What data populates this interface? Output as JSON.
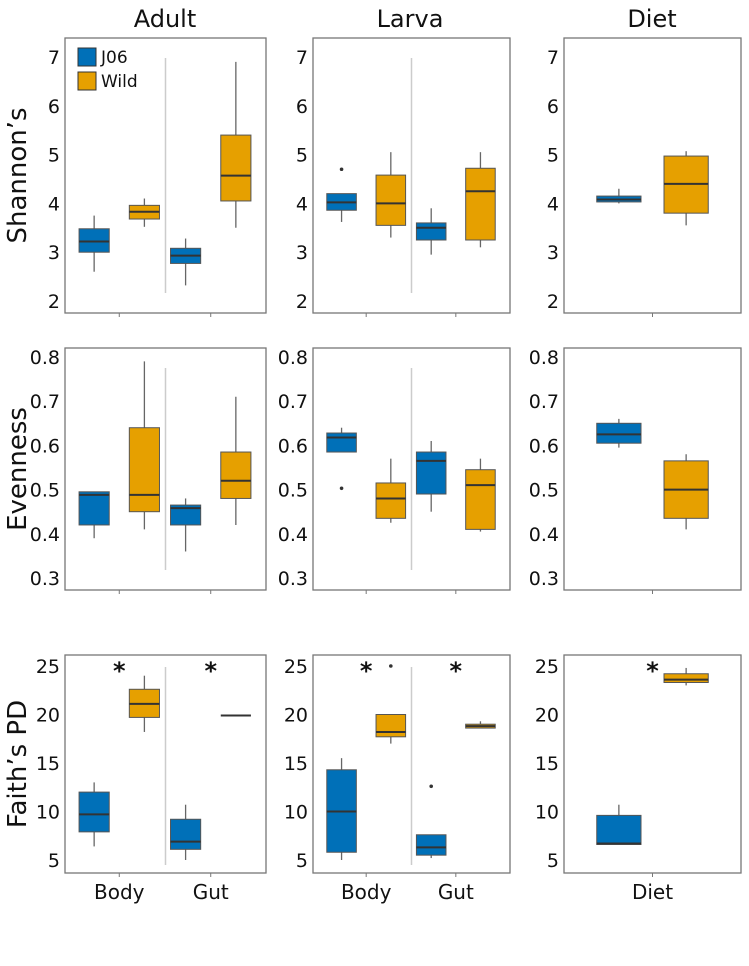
{
  "colors": {
    "J06": "#0070b8",
    "Wild": "#e6a000",
    "box_stroke": "#555555",
    "median": "#333333",
    "panel_border": "#777777",
    "divider": "#cccccc"
  },
  "chart_data": {
    "type": "boxplot",
    "columns": [
      "Adult",
      "Larva",
      "Diet"
    ],
    "legend": {
      "placement": "top-left of Adult Shannon panel",
      "entries": [
        "J06",
        "Wild"
      ]
    },
    "rows": [
      {
        "ylabel": "Shannon’s",
        "ylim": [
          1.9,
          7.3
        ],
        "ticks": [
          "2",
          "3",
          "4",
          "5",
          "6",
          "7"
        ],
        "tick_values": [
          2,
          3,
          4,
          5,
          6,
          7
        ]
      },
      {
        "ylabel": "Evenness",
        "ylim": [
          0.28,
          0.82
        ],
        "ticks": [
          "0.3",
          "0.4",
          "0.5",
          "0.6",
          "0.7",
          "0.8"
        ],
        "tick_values": [
          0.3,
          0.4,
          0.5,
          0.6,
          0.7,
          0.8
        ]
      },
      {
        "ylabel": "Faith’s PD",
        "ylim": [
          4,
          26
        ],
        "ticks": [
          "5",
          "10",
          "15",
          "20",
          "25"
        ],
        "tick_values": [
          5,
          10,
          15,
          20,
          25
        ]
      }
    ],
    "x_groups": {
      "Adult": [
        "Body",
        "Gut"
      ],
      "Larva": [
        "Body",
        "Gut"
      ],
      "Diet": [
        "Diet"
      ]
    },
    "panels": [
      {
        "row": 0,
        "col": 0,
        "groups": [
          {
            "group": "Body",
            "J06": {
              "min": 2.6,
              "q1": 3.0,
              "median": 3.22,
              "q3": 3.48,
              "max": 3.75
            },
            "Wild": {
              "min": 3.52,
              "q1": 3.68,
              "median": 3.83,
              "q3": 3.96,
              "max": 4.1
            }
          },
          {
            "group": "Gut",
            "J06": {
              "min": 2.32,
              "q1": 2.77,
              "median": 2.93,
              "q3": 3.08,
              "max": 3.28
            },
            "Wild": {
              "min": 3.5,
              "q1": 4.05,
              "median": 4.57,
              "q3": 5.4,
              "max": 6.9
            }
          }
        ]
      },
      {
        "row": 0,
        "col": 1,
        "groups": [
          {
            "group": "Body",
            "J06": {
              "min": 3.62,
              "q1": 3.86,
              "median": 4.02,
              "q3": 4.2,
              "max": 4.2,
              "outliers": [
                4.7
              ]
            },
            "Wild": {
              "min": 3.3,
              "q1": 3.55,
              "median": 4.0,
              "q3": 4.58,
              "max": 5.05
            }
          },
          {
            "group": "Gut",
            "J06": {
              "min": 2.95,
              "q1": 3.25,
              "median": 3.5,
              "q3": 3.6,
              "max": 3.9
            },
            "Wild": {
              "min": 3.1,
              "q1": 3.25,
              "median": 4.25,
              "q3": 4.72,
              "max": 5.05
            }
          }
        ]
      },
      {
        "row": 0,
        "col": 2,
        "groups": [
          {
            "group": "Diet",
            "J06": {
              "min": 4.0,
              "q1": 4.03,
              "median": 4.08,
              "q3": 4.15,
              "max": 4.3
            },
            "Wild": {
              "min": 3.55,
              "q1": 3.8,
              "median": 4.4,
              "q3": 4.97,
              "max": 5.07
            }
          }
        ]
      },
      {
        "row": 1,
        "col": 0,
        "groups": [
          {
            "group": "Body",
            "J06": {
              "min": 0.39,
              "q1": 0.42,
              "median": 0.488,
              "q3": 0.495,
              "max": 0.495
            },
            "Wild": {
              "min": 0.41,
              "q1": 0.45,
              "median": 0.488,
              "q3": 0.64,
              "max": 0.79
            }
          },
          {
            "group": "Gut",
            "J06": {
              "min": 0.36,
              "q1": 0.42,
              "median": 0.458,
              "q3": 0.465,
              "max": 0.48
            },
            "Wild": {
              "min": 0.42,
              "q1": 0.48,
              "median": 0.52,
              "q3": 0.585,
              "max": 0.71
            }
          }
        ]
      },
      {
        "row": 1,
        "col": 1,
        "groups": [
          {
            "group": "Body",
            "J06": {
              "min": 0.585,
              "q1": 0.585,
              "median": 0.618,
              "q3": 0.628,
              "max": 0.64,
              "outliers": [
                0.503
              ]
            },
            "Wild": {
              "min": 0.425,
              "q1": 0.435,
              "median": 0.48,
              "q3": 0.515,
              "max": 0.57
            }
          },
          {
            "group": "Gut",
            "J06": {
              "min": 0.45,
              "q1": 0.49,
              "median": 0.565,
              "q3": 0.585,
              "max": 0.61
            },
            "Wild": {
              "min": 0.405,
              "q1": 0.41,
              "median": 0.51,
              "q3": 0.545,
              "max": 0.57
            }
          }
        ]
      },
      {
        "row": 1,
        "col": 2,
        "groups": [
          {
            "group": "Diet",
            "J06": {
              "min": 0.595,
              "q1": 0.605,
              "median": 0.625,
              "q3": 0.65,
              "max": 0.66
            },
            "Wild": {
              "min": 0.41,
              "q1": 0.435,
              "median": 0.5,
              "q3": 0.565,
              "max": 0.58
            }
          }
        ]
      },
      {
        "row": 2,
        "col": 0,
        "groups": [
          {
            "group": "Body",
            "significant": "*",
            "J06": {
              "min": 6.4,
              "q1": 7.9,
              "median": 9.7,
              "q3": 12.0,
              "max": 13.0
            },
            "Wild": {
              "min": 18.2,
              "q1": 19.7,
              "median": 21.1,
              "q3": 22.6,
              "max": 24.0
            }
          },
          {
            "group": "Gut",
            "significant": "*",
            "J06": {
              "min": 5.0,
              "q1": 6.1,
              "median": 6.9,
              "q3": 9.2,
              "max": 10.7
            },
            "Wild": {
              "min": 19.9,
              "q1": 19.9,
              "median": 19.9,
              "q3": 19.9,
              "max": 19.9
            }
          }
        ]
      },
      {
        "row": 2,
        "col": 1,
        "groups": [
          {
            "group": "Body",
            "significant": "*",
            "J06": {
              "min": 5.0,
              "q1": 5.8,
              "median": 10.0,
              "q3": 14.3,
              "max": 15.5
            },
            "Wild": {
              "min": 17.0,
              "q1": 17.7,
              "median": 18.2,
              "q3": 20.0,
              "max": 20.0,
              "outliers": [
                25.0
              ]
            }
          },
          {
            "group": "Gut",
            "significant": "*",
            "J06": {
              "min": 5.2,
              "q1": 5.5,
              "median": 6.3,
              "q3": 7.6,
              "max": 7.6,
              "outliers": [
                12.6
              ]
            },
            "Wild": {
              "min": 18.6,
              "q1": 18.6,
              "median": 18.8,
              "q3": 19.0,
              "max": 19.3
            }
          }
        ]
      },
      {
        "row": 2,
        "col": 2,
        "groups": [
          {
            "group": "Diet",
            "significant": "*",
            "J06": {
              "min": 6.6,
              "q1": 6.6,
              "median": 6.7,
              "q3": 9.6,
              "max": 10.7
            },
            "Wild": {
              "min": 23.0,
              "q1": 23.3,
              "median": 23.6,
              "q3": 24.2,
              "max": 24.8
            }
          }
        ]
      }
    ]
  }
}
